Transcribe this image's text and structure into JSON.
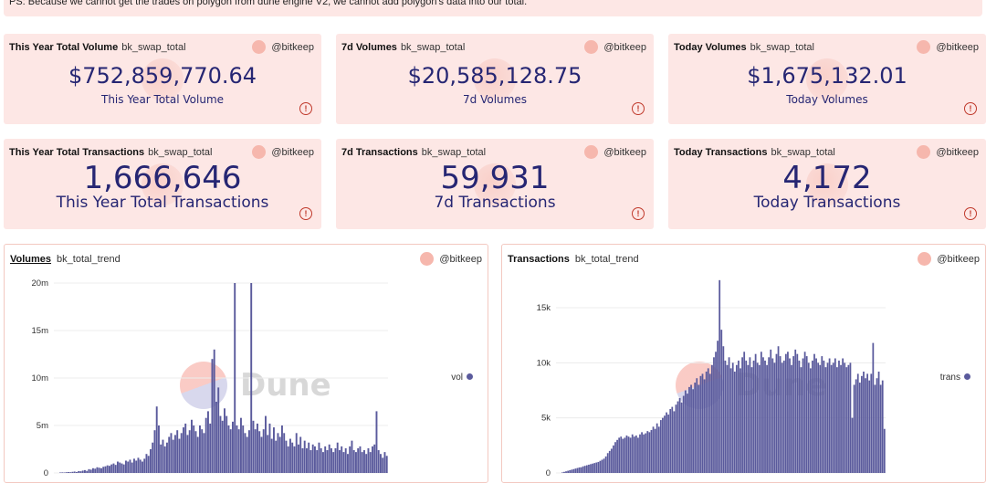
{
  "note": "PS: Because we cannot get the trades on polygon from dune engine V2, we cannot add polygon's data into our total.",
  "owner": "@bitkeep",
  "counters": [
    {
      "title": "This Year Total Volume",
      "query": "bk_swap_total",
      "value": "$752,859,770.64",
      "label": "This Year Total Volume"
    },
    {
      "title": "7d Volumes",
      "query": "bk_swap_total",
      "value": "$20,585,128.75",
      "label": "7d Volumes"
    },
    {
      "title": "Today Volumes",
      "query": "bk_swap_total",
      "value": "$1,675,132.01",
      "label": "Today Volumes"
    },
    {
      "title": "This Year Total Transactions",
      "query": "bk_swap_total",
      "value": "1,666,646",
      "label": "This Year Total Transactions"
    },
    {
      "title": "7d Transactions",
      "query": "bk_swap_total",
      "value": "59,931",
      "label": "7d Transactions"
    },
    {
      "title": "Today Transactions",
      "query": "bk_swap_total",
      "value": "4,172",
      "label": "Today Transactions"
    }
  ],
  "warn_icon": "warning-circle-icon",
  "watermark_text": "Dune",
  "bar_color": "#5a5a9c",
  "chart_data": [
    {
      "type": "bar",
      "title": "Volumes",
      "query": "bk_total_trend",
      "series": [
        {
          "name": "vol",
          "values": [
            0.05,
            0.06,
            0.05,
            0.08,
            0.1,
            0.08,
            0.12,
            0.15,
            0.1,
            0.2,
            0.18,
            0.25,
            0.3,
            0.22,
            0.4,
            0.35,
            0.5,
            0.45,
            0.6,
            0.55,
            0.5,
            0.65,
            0.7,
            0.8,
            0.75,
            0.9,
            1.0,
            0.85,
            1.2,
            1.1,
            1.0,
            0.9,
            1.3,
            1.2,
            1.4,
            1.1,
            1.5,
            1.3,
            1.6,
            1.4,
            1.2,
            1.5,
            2.0,
            1.8,
            2.5,
            3.2,
            4.5,
            7.0,
            5.0,
            3.0,
            3.5,
            2.8,
            3.2,
            3.8,
            4.2,
            3.5,
            4.0,
            4.5,
            3.6,
            4.2,
            4.8,
            5.2,
            4.0,
            4.5,
            5.6,
            5.0,
            4.4,
            3.8,
            5.0,
            4.6,
            4.2,
            5.8,
            6.5,
            5.2,
            12.0,
            13.0,
            7.5,
            9.0,
            6.0,
            5.5,
            6.8,
            6.0,
            5.0,
            4.6,
            5.4,
            20.0,
            5.0,
            4.6,
            5.8,
            5.0,
            4.2,
            3.8,
            4.5,
            20.0,
            5.5,
            4.6,
            5.2,
            4.4,
            3.8,
            4.6,
            6.0,
            4.0,
            5.2,
            3.6,
            4.8,
            3.4,
            4.2,
            3.8,
            5.0,
            4.2,
            3.4,
            2.8,
            3.6,
            3.2,
            2.8,
            4.2,
            3.0,
            3.8,
            2.6,
            3.4,
            2.6,
            3.2,
            2.4,
            3.0,
            2.8,
            2.4,
            3.2,
            2.6,
            2.2,
            2.8,
            2.4,
            3.0,
            2.6,
            2.2,
            2.6,
            3.2,
            2.4,
            2.8,
            2.2,
            2.6,
            2.0,
            2.8,
            3.4,
            2.4,
            2.2,
            2.6,
            2.8,
            2.2,
            2.4,
            2.0,
            2.6,
            2.2,
            2.8,
            3.0,
            6.5,
            2.4,
            2.0,
            1.6,
            2.2,
            1.8
          ]
        }
      ],
      "ylim": [
        0,
        21
      ],
      "yticks": [
        "0",
        "5m",
        "10m",
        "15m",
        "20m"
      ],
      "ytick_values": [
        0,
        5,
        10,
        15,
        20
      ]
    },
    {
      "type": "bar",
      "title": "Transactions",
      "query": "bk_total_trend",
      "series": [
        {
          "name": "trans",
          "values": [
            50,
            100,
            150,
            200,
            250,
            300,
            350,
            400,
            450,
            500,
            520,
            600,
            650,
            700,
            750,
            800,
            850,
            900,
            950,
            1000,
            1100,
            1200,
            1300,
            1500,
            1800,
            2000,
            2200,
            2500,
            2800,
            3000,
            3200,
            3300,
            3100,
            3200,
            3400,
            3300,
            3200,
            3500,
            3300,
            3400,
            3200,
            3500,
            3700,
            3500,
            3600,
            3800,
            3700,
            3900,
            4200,
            4000,
            4500,
            4200,
            4800,
            5000,
            5200,
            5500,
            5300,
            5800,
            6000,
            5600,
            6200,
            6500,
            6800,
            6400,
            7000,
            7500,
            7200,
            7800,
            8000,
            7600,
            8200,
            8600,
            8000,
            8800,
            9000,
            8500,
            9200,
            9500,
            9000,
            9800,
            10500,
            11000,
            12000,
            17500,
            13000,
            11500,
            10200,
            9800,
            10500,
            9500,
            10000,
            9200,
            9800,
            10200,
            9500,
            10500,
            11000,
            10200,
            9800,
            10500,
            9600,
            10200,
            10800,
            10000,
            9800,
            11000,
            10500,
            10200,
            9800,
            10500,
            11200,
            10400,
            10000,
            10800,
            11500,
            10600,
            10000,
            10200,
            10800,
            11000,
            10400,
            9800,
            10600,
            11200,
            10800,
            10200,
            9600,
            10400,
            11000,
            10600,
            10000,
            9500,
            10200,
            10800,
            10400,
            10000,
            9800,
            10600,
            10200,
            9600,
            10000,
            10400,
            9800,
            10000,
            10400,
            9600,
            10200,
            9800,
            10400,
            10000,
            9600,
            9800,
            10000,
            5000,
            8000,
            8500,
            9000,
            8200,
            8800,
            9200,
            8600,
            9000,
            8400,
            9000,
            11800,
            8000,
            8600,
            9200,
            8000,
            8400,
            4000
          ]
        }
      ],
      "ylim": [
        0,
        19000
      ],
      "yticks": [
        "0",
        "5k",
        "10k",
        "15k"
      ],
      "ytick_values": [
        0,
        5000,
        10000,
        15000
      ]
    }
  ]
}
